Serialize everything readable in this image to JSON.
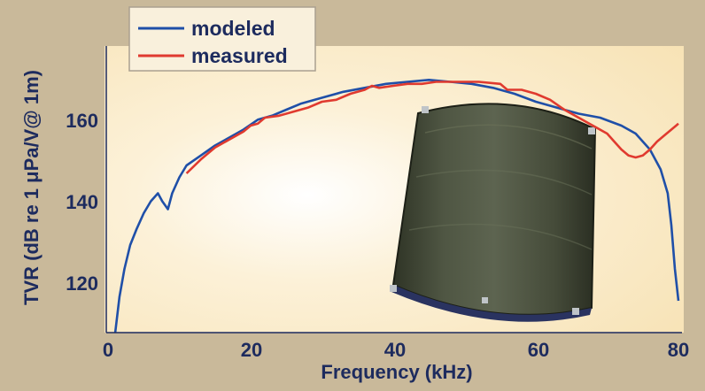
{
  "chart_data": {
    "type": "line",
    "title": "",
    "xlabel": "Frequency (kHz)",
    "ylabel": "TVR (dB re 1 μPa/V@ 1m)",
    "xlim": [
      0,
      80
    ],
    "ylim": [
      108,
      180
    ],
    "x_ticks": [
      "0",
      "20",
      "40",
      "60",
      "80"
    ],
    "y_ticks": [
      "120",
      "140",
      "160"
    ],
    "legend_position": "top-left",
    "grid": false,
    "series": [
      {
        "name": "modeled",
        "color": "#1f4fa8",
        "points": [
          [
            1,
            108
          ],
          [
            1.6,
            117
          ],
          [
            2.3,
            124
          ],
          [
            3.1,
            130
          ],
          [
            4,
            134
          ],
          [
            5,
            138
          ],
          [
            6,
            141
          ],
          [
            7,
            143
          ],
          [
            7.6,
            141
          ],
          [
            8.4,
            139
          ],
          [
            9,
            143
          ],
          [
            10,
            147
          ],
          [
            11,
            150
          ],
          [
            13,
            152.5
          ],
          [
            15,
            155
          ],
          [
            17,
            157
          ],
          [
            19,
            159
          ],
          [
            21,
            161.5
          ],
          [
            23,
            162.5
          ],
          [
            25,
            164
          ],
          [
            27,
            165.5
          ],
          [
            30,
            167
          ],
          [
            33,
            168.5
          ],
          [
            36,
            169.5
          ],
          [
            39,
            170.5
          ],
          [
            42,
            171
          ],
          [
            45,
            171.5
          ],
          [
            48,
            171
          ],
          [
            51,
            170.5
          ],
          [
            54,
            169.5
          ],
          [
            57,
            168
          ],
          [
            60,
            166
          ],
          [
            63,
            164.5
          ],
          [
            66,
            163
          ],
          [
            69,
            162
          ],
          [
            72,
            160
          ],
          [
            74,
            158
          ],
          [
            76,
            154
          ],
          [
            77.5,
            149
          ],
          [
            78.5,
            143
          ],
          [
            79,
            135
          ],
          [
            79.5,
            124
          ],
          [
            80,
            116
          ]
        ]
      },
      {
        "name": "measured",
        "color": "#e03a2f",
        "points": [
          [
            11,
            148
          ],
          [
            13,
            151.5
          ],
          [
            15,
            154.5
          ],
          [
            17,
            156.5
          ],
          [
            19,
            158.5
          ],
          [
            20,
            160
          ],
          [
            21,
            160.5
          ],
          [
            22,
            162
          ],
          [
            24,
            162.5
          ],
          [
            26,
            163.5
          ],
          [
            28,
            164.5
          ],
          [
            30,
            166
          ],
          [
            32,
            166.5
          ],
          [
            34,
            168
          ],
          [
            36,
            169
          ],
          [
            37,
            170
          ],
          [
            38,
            169.5
          ],
          [
            40,
            170
          ],
          [
            42,
            170.5
          ],
          [
            44,
            170.5
          ],
          [
            46,
            171
          ],
          [
            49,
            171
          ],
          [
            52,
            171
          ],
          [
            55,
            170.5
          ],
          [
            56,
            169
          ],
          [
            58,
            169
          ],
          [
            60,
            168
          ],
          [
            62,
            166.5
          ],
          [
            64,
            164
          ],
          [
            66,
            162
          ],
          [
            68,
            160
          ],
          [
            70,
            158
          ],
          [
            71,
            156
          ],
          [
            72,
            154
          ],
          [
            73,
            152.5
          ],
          [
            74,
            152
          ],
          [
            75,
            152.5
          ],
          [
            76,
            154
          ],
          [
            77,
            156
          ],
          [
            78,
            157.5
          ],
          [
            79,
            159
          ],
          [
            80,
            160.5
          ]
        ]
      }
    ]
  }
}
